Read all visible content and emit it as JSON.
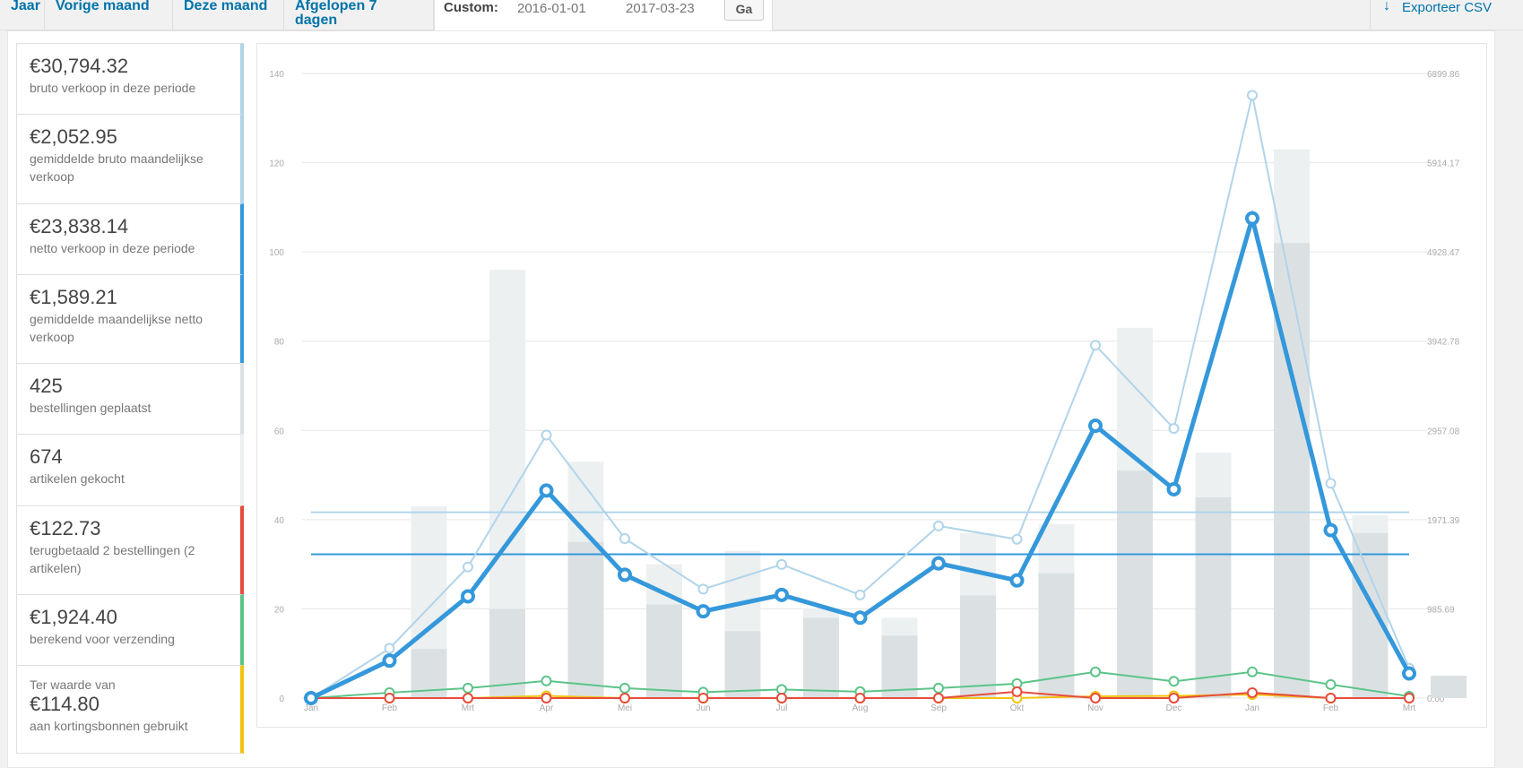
{
  "nav": {
    "tabs": [
      "Jaar",
      "Vorige maand",
      "Deze maand",
      "Afgelopen 7 dagen"
    ],
    "custom_label": "Custom:",
    "start_date": "2016-01-01",
    "end_date": "2017-03-23",
    "go_label": "Ga",
    "export_label": "Exporteer CSV"
  },
  "legend": [
    {
      "amount": "€30,794.32",
      "desc": "bruto verkoop in deze periode",
      "color": "#b1d4ea"
    },
    {
      "amount": "€2,052.95",
      "desc": "gemiddelde bruto maandelijkse verkoop",
      "color": "#b1d4ea"
    },
    {
      "amount": "€23,838.14",
      "desc": "netto verkoop in deze periode",
      "color": "#3498db"
    },
    {
      "amount": "€1,589.21",
      "desc": "gemiddelde maandelijkse netto verkoop",
      "color": "#3498db"
    },
    {
      "amount": "425",
      "desc": "bestellingen geplaatst",
      "color": "#dbe1e3"
    },
    {
      "amount": "674",
      "desc": "artikelen gekocht",
      "color": "#ecf0f1"
    },
    {
      "amount": "€122.73",
      "desc": "terugbetaald 2 bestellingen (2 artikelen)",
      "color": "#e74c3c"
    },
    {
      "amount": "€1,924.40",
      "desc": "berekend voor verzending",
      "color": "#5cc488"
    },
    {
      "pre": "Ter waarde van",
      "amount": "€114.80",
      "desc": "aan kortingsbonnen gebruikt",
      "color": "#f1c40f"
    }
  ],
  "chart_data": {
    "type": "bar+line",
    "categories": [
      "Jan",
      "Feb",
      "Mrt",
      "Apr",
      "Mei",
      "Jun",
      "Jul",
      "Aug",
      "Sep",
      "Okt",
      "Nov",
      "Dec",
      "Jan",
      "Feb",
      "Mrt"
    ],
    "left_axis": {
      "ticks": [
        "0",
        "20",
        "40",
        "60",
        "80",
        "100",
        "120",
        "140"
      ],
      "ylim": [
        0,
        140
      ]
    },
    "right_axis": {
      "ticks": [
        "0.00",
        "985.69",
        "1971.39",
        "2957.08",
        "3942.78",
        "4928.47",
        "5914.17",
        "6899.86"
      ],
      "ylim": [
        0,
        6899.86
      ]
    },
    "bars_items": {
      "color": "#ecf0f1",
      "values": [
        0,
        43,
        96,
        53,
        30,
        33,
        20,
        18,
        37,
        39,
        83,
        55,
        123,
        41,
        5
      ]
    },
    "bars_orders": {
      "color": "#dbe1e3",
      "values": [
        0,
        11,
        20,
        35,
        21,
        15,
        18,
        14,
        23,
        28,
        51,
        45,
        102,
        37,
        5
      ]
    },
    "gross_sales": {
      "color": "#b1d4ea",
      "values": [
        0,
        549,
        1449,
        2906,
        1762,
        1204,
        1476,
        1140,
        1902,
        1755,
        3898,
        2978,
        6659,
        2372,
        330
      ]
    },
    "net_sales": {
      "color": "#3498db",
      "values": [
        0,
        414,
        1124,
        2293,
        1362,
        959,
        1140,
        888,
        1488,
        1300,
        3009,
        2307,
        5300,
        1856,
        272
      ]
    },
    "shipping": {
      "color": "#5cc488",
      "values": [
        0,
        60,
        110,
        190,
        110,
        65,
        95,
        70,
        110,
        160,
        290,
        185,
        290,
        150,
        20
      ]
    },
    "refunds": {
      "color": "#e74c3c",
      "values": [
        0,
        0,
        0,
        0,
        0,
        0,
        0,
        0,
        0,
        70,
        0,
        0,
        60,
        0,
        0
      ]
    },
    "coupons": {
      "color": "#f1c40f",
      "values": [
        0,
        0,
        0,
        25,
        0,
        0,
        0,
        0,
        0,
        0,
        20,
        25,
        40,
        0,
        0
      ]
    },
    "avg_gross": {
      "color": "#b1d4ea",
      "value": 2052.95
    },
    "avg_net": {
      "color": "#3498db",
      "value": 1589.21
    }
  }
}
